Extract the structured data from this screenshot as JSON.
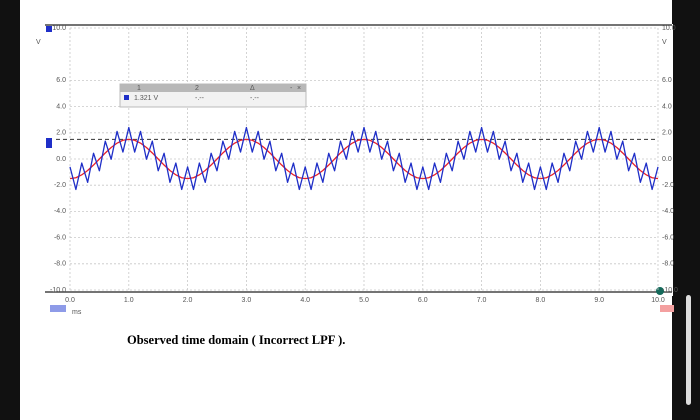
{
  "chart_data": {
    "type": "line",
    "x_unit": "ms",
    "y_unit": "V",
    "xlim": [
      0,
      10
    ],
    "ylim": [
      -10,
      10
    ],
    "xticks": [
      {
        "value": 0,
        "label": "0.0"
      },
      {
        "value": 1,
        "label": "1.0"
      },
      {
        "value": 2,
        "label": "2.0"
      },
      {
        "value": 3,
        "label": "3.0"
      },
      {
        "value": 4,
        "label": "4.0"
      },
      {
        "value": 5,
        "label": "5.0"
      },
      {
        "value": 6,
        "label": "6.0"
      },
      {
        "value": 7,
        "label": "7.0"
      },
      {
        "value": 8,
        "label": "8.0"
      },
      {
        "value": 9,
        "label": "9.0"
      },
      {
        "value": 10,
        "label": "10.0"
      }
    ],
    "yticks": [
      {
        "value": 10,
        "label": "10.0"
      },
      {
        "value": 6,
        "label": "6.0"
      },
      {
        "value": 4,
        "label": "4.0"
      },
      {
        "value": 2,
        "label": "2.0"
      },
      {
        "value": 0,
        "label": "0.0"
      },
      {
        "value": -2,
        "label": "-2.0"
      },
      {
        "value": -4,
        "label": "-4.0"
      },
      {
        "value": -6,
        "label": "-6.0"
      },
      {
        "value": -8,
        "label": "-8.0"
      },
      {
        "value": -10,
        "label": "-10.0"
      }
    ],
    "grid": true,
    "trigger_level": 1.5,
    "x": [
      0,
      0.1,
      0.2,
      0.3,
      0.4,
      0.5,
      0.6,
      0.7,
      0.8,
      0.9,
      1,
      1.1,
      1.2,
      1.3,
      1.4,
      1.5,
      1.6,
      1.7,
      1.8,
      1.9,
      2,
      2.1,
      2.2,
      2.3,
      2.4,
      2.5,
      2.6,
      2.7,
      2.8,
      2.9,
      3,
      3.1,
      3.2,
      3.3,
      3.4,
      3.5,
      3.6,
      3.7,
      3.8,
      3.9,
      4,
      4.1,
      4.2,
      4.3,
      4.4,
      4.5,
      4.6,
      4.7,
      4.8,
      4.9,
      5,
      5.1,
      5.2,
      5.3,
      5.4,
      5.5,
      5.6,
      5.7,
      5.8,
      5.9,
      6,
      6.1,
      6.2,
      6.3,
      6.4,
      6.5,
      6.6,
      6.7,
      6.8,
      6.9,
      7,
      7.1,
      7.2,
      7.3,
      7.4,
      7.5,
      7.6,
      7.7,
      7.8,
      7.9,
      8,
      8.1,
      8.2,
      8.3,
      8.4,
      8.5,
      8.6,
      8.7,
      8.8,
      8.9,
      9,
      9.1,
      9.2,
      9.3,
      9.4,
      9.5,
      9.6,
      9.7,
      9.8,
      9.9,
      10
    ],
    "series": [
      {
        "color": "#e8202a",
        "values": [
          -1.5,
          -1.43,
          -1.21,
          -0.88,
          -0.46,
          0,
          0.46,
          0.88,
          1.21,
          1.43,
          1.5,
          1.43,
          1.21,
          0.88,
          0.46,
          0,
          -0.46,
          -0.88,
          -1.21,
          -1.43,
          -1.5,
          -1.43,
          -1.21,
          -0.88,
          -0.46,
          0,
          0.46,
          0.88,
          1.21,
          1.43,
          1.5,
          1.43,
          1.21,
          0.88,
          0.46,
          0,
          -0.46,
          -0.88,
          -1.21,
          -1.43,
          -1.5,
          -1.43,
          -1.21,
          -0.88,
          -0.46,
          0,
          0.46,
          0.88,
          1.21,
          1.43,
          1.5,
          1.43,
          1.21,
          0.88,
          0.46,
          0,
          -0.46,
          -0.88,
          -1.21,
          -1.43,
          -1.5,
          -1.43,
          -1.21,
          -0.88,
          -0.46,
          0,
          0.46,
          0.88,
          1.21,
          1.43,
          1.5,
          1.43,
          1.21,
          0.88,
          0.46,
          0,
          -0.46,
          -0.88,
          -1.21,
          -1.43,
          -1.5,
          -1.43,
          -1.21,
          -0.88,
          -0.46,
          0,
          0.46,
          0.88,
          1.21,
          1.43,
          1.5,
          1.43,
          1.21,
          0.88,
          0.46,
          0,
          -0.46,
          -0.88,
          -1.21,
          -1.43,
          -1.5
        ]
      },
      {
        "color": "#1f2fc8",
        "values": [
          -0.6,
          -2.33,
          -0.31,
          -1.78,
          0.44,
          -0.9,
          1.36,
          -0.02,
          2.11,
          0.53,
          2.4,
          0.53,
          2.11,
          -0.02,
          1.36,
          -0.9,
          0.44,
          -1.78,
          -0.31,
          -2.33,
          -0.6,
          -2.33,
          -0.31,
          -1.78,
          0.44,
          -0.9,
          1.36,
          -0.02,
          2.11,
          0.53,
          2.4,
          0.53,
          2.11,
          -0.02,
          1.36,
          -0.9,
          0.44,
          -1.78,
          -0.31,
          -2.33,
          -0.6,
          -2.33,
          -0.31,
          -1.78,
          0.44,
          -0.9,
          1.36,
          -0.02,
          2.11,
          0.53,
          2.4,
          0.53,
          2.11,
          -0.02,
          1.36,
          -0.9,
          0.44,
          -1.78,
          -0.31,
          -2.33,
          -0.6,
          -2.33,
          -0.31,
          -1.78,
          0.44,
          -0.9,
          1.36,
          -0.02,
          2.11,
          0.53,
          2.4,
          0.53,
          2.11,
          -0.02,
          1.36,
          -0.9,
          0.44,
          -1.78,
          -0.31,
          -2.33,
          -0.6,
          -2.33,
          -0.31,
          -1.78,
          0.44,
          -0.9,
          1.36,
          -0.02,
          2.11,
          0.53,
          2.4,
          0.53,
          2.11,
          -0.02,
          1.36,
          -0.9,
          0.44,
          -1.78,
          -0.31,
          -2.33,
          -0.6
        ]
      }
    ]
  },
  "cursor_box": {
    "headers": [
      "1",
      "2",
      "Δ"
    ],
    "readings": [
      "1.321 V",
      "-.--",
      "-.--"
    ]
  },
  "caption": "Observed time domain ( Incorrect LPF )."
}
